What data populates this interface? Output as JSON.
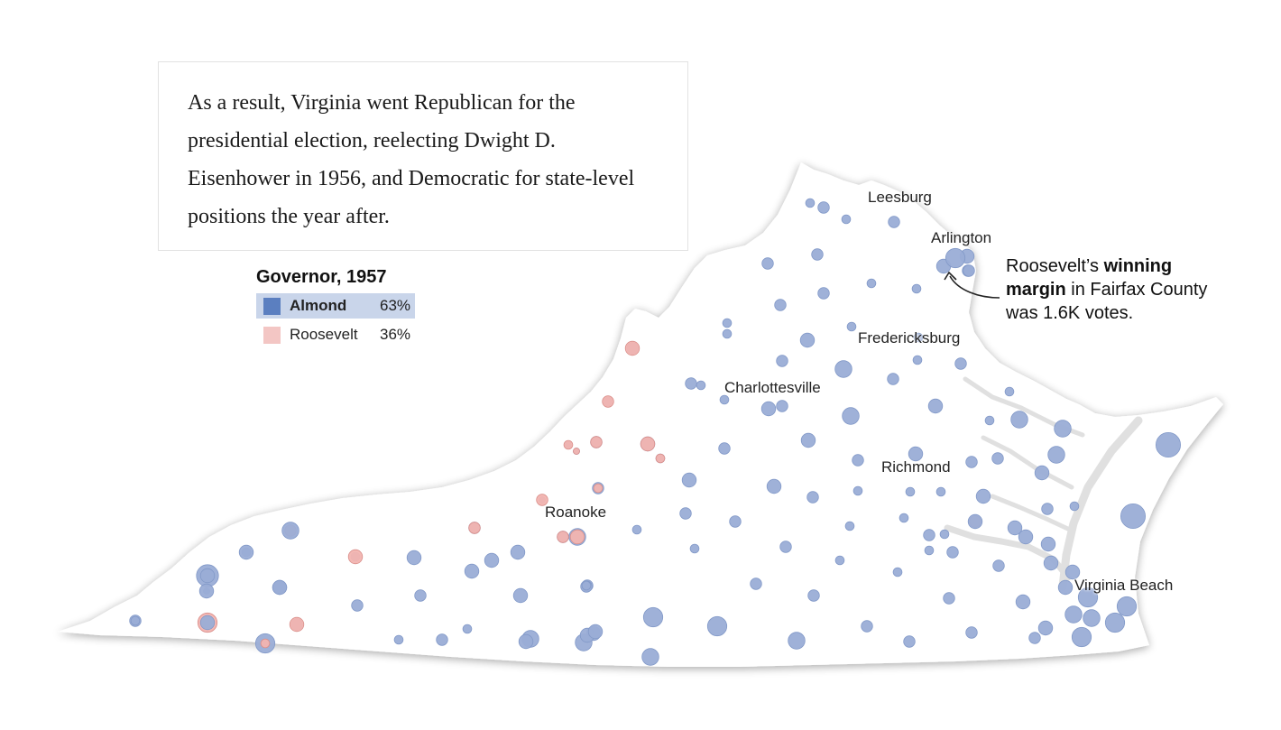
{
  "story": {
    "text": "As a result, Virginia went Republican for the presidential election, reelecting Dwight D. Eisenhower in 1956, and Democratic for state-level positions the year after."
  },
  "legend": {
    "title": "Governor, 1957",
    "candidates": [
      {
        "name": "Almond",
        "pct": "63%",
        "color": "#5b7fc0",
        "winner": true
      },
      {
        "name": "Roosevelt",
        "pct": "36%",
        "color": "#f3c6c4",
        "winner": false
      }
    ]
  },
  "cities": [
    "Leesburg",
    "Arlington",
    "Fredericksburg",
    "Charlottesville",
    "Richmond",
    "Roanoke",
    "Virginia Beach"
  ],
  "annotation": {
    "prefix": "Roosevelt’s ",
    "bold": "winning margin",
    "suffix": " in Fairfax County was 1.6K votes."
  },
  "colors": {
    "almond_bubble": "#9aadd6",
    "almond_stroke": "#8299c8",
    "roosevelt_bubble": "#f2b4b0",
    "roosevelt_stroke": "#d98e8a",
    "state_fill": "#ffffff",
    "water": "#e0e0e0"
  },
  "counties": [
    {
      "winner": "R",
      "size": 3
    },
    {
      "winner": "R",
      "size": 6
    },
    {
      "winner": "R",
      "size": 3
    },
    {
      "winner": "A",
      "size": 7
    },
    {
      "winner": "A",
      "size": 1
    },
    {
      "winner": "A",
      "size": 2
    },
    {
      "winner": "A",
      "size": 3
    },
    {
      "winner": "A",
      "size": 4
    },
    {
      "winner": "A",
      "size": 6
    },
    {
      "winner": "A",
      "size": 3
    },
    {
      "winner": "A",
      "size": 2
    },
    {
      "winner": "A",
      "size": 3
    },
    {
      "winner": "A",
      "size": 1
    },
    {
      "winner": "A",
      "size": 3
    },
    {
      "winner": "A",
      "size": 1
    },
    {
      "winner": "A",
      "size": 1
    },
    {
      "winner": "A",
      "size": 3
    },
    {
      "winner": "A",
      "size": 3
    },
    {
      "winner": "A",
      "size": 5
    },
    {
      "winner": "A",
      "size": 2
    },
    {
      "winner": "A",
      "size": 3
    },
    {
      "winner": "A",
      "size": 4
    },
    {
      "winner": "A",
      "size": 2
    },
    {
      "winner": "A",
      "size": 3
    },
    {
      "winner": "A",
      "size": 4
    },
    {
      "winner": "A",
      "size": 3
    },
    {
      "winner": "A",
      "size": 3
    },
    {
      "winner": "A",
      "size": 2
    },
    {
      "winner": "A",
      "size": 2
    },
    {
      "winner": "A",
      "size": 2
    },
    {
      "winner": "A",
      "size": 2
    },
    {
      "winner": "A",
      "size": 3
    },
    {
      "winner": "A",
      "size": 3
    },
    {
      "winner": "A",
      "size": 4
    },
    {
      "winner": "A",
      "size": 3
    },
    {
      "winner": "A",
      "size": 4
    },
    {
      "winner": "A",
      "size": 4
    },
    {
      "winner": "A",
      "size": 3
    },
    {
      "winner": "A",
      "size": 3
    },
    {
      "winner": "A",
      "size": 3
    },
    {
      "winner": "A",
      "size": 2
    },
    {
      "winner": "A",
      "size": 3
    },
    {
      "winner": "A",
      "size": 2
    },
    {
      "winner": "A",
      "size": 3
    },
    {
      "winner": "A",
      "size": 2
    },
    {
      "winner": "A",
      "size": 2
    },
    {
      "winner": "A",
      "size": 2
    },
    {
      "winner": "A",
      "size": 2
    },
    {
      "winner": "A",
      "size": 2
    },
    {
      "winner": "A",
      "size": 3
    },
    {
      "winner": "A",
      "size": 3
    },
    {
      "winner": "A",
      "size": 3
    },
    {
      "winner": "A",
      "size": 5
    },
    {
      "winner": "A",
      "size": 5
    },
    {
      "winner": "A",
      "size": 4
    },
    {
      "winner": "A",
      "size": 4
    },
    {
      "winner": "A",
      "size": 3
    },
    {
      "winner": "A",
      "size": 4
    },
    {
      "winner": "A",
      "size": 3
    },
    {
      "winner": "A",
      "size": 2
    },
    {
      "winner": "A",
      "size": 2
    },
    {
      "winner": "A",
      "size": 2
    },
    {
      "winner": "A",
      "size": 2
    },
    {
      "winner": "A",
      "size": 2
    },
    {
      "winner": "A",
      "size": 3
    },
    {
      "winner": "A",
      "size": 2
    },
    {
      "winner": "A",
      "size": 2
    },
    {
      "winner": "A",
      "size": 3
    },
    {
      "winner": "A",
      "size": 4
    },
    {
      "winner": "A",
      "size": 3
    },
    {
      "winner": "A",
      "size": 3
    },
    {
      "winner": "A",
      "size": 2
    },
    {
      "winner": "A",
      "size": 2
    },
    {
      "winner": "A",
      "size": 5
    },
    {
      "winner": "A",
      "size": 5
    },
    {
      "winner": "A",
      "size": 5
    },
    {
      "winner": "A",
      "size": 4
    },
    {
      "winner": "A",
      "size": 2
    },
    {
      "winner": "A",
      "size": 3
    },
    {
      "winner": "A",
      "size": 4
    },
    {
      "winner": "A",
      "size": 4
    },
    {
      "winner": "A",
      "size": 4
    },
    {
      "winner": "A",
      "size": 4
    },
    {
      "winner": "A",
      "size": 4
    },
    {
      "winner": "A",
      "size": 4
    },
    {
      "winner": "A",
      "size": 6
    },
    {
      "winner": "A",
      "size": 5
    },
    {
      "winner": "A",
      "size": 5
    },
    {
      "winner": "A",
      "size": 6
    },
    {
      "winner": "A",
      "size": 6
    },
    {
      "winner": "A",
      "size": 8
    },
    {
      "winner": "A",
      "size": 8
    },
    {
      "winner": "A",
      "size": 6
    },
    {
      "winner": "A",
      "size": 4
    },
    {
      "winner": "A",
      "size": 4
    },
    {
      "winner": "A",
      "size": 3
    },
    {
      "winner": "A",
      "size": 3
    },
    {
      "winner": "A",
      "size": 3
    },
    {
      "winner": "A",
      "size": 3
    },
    {
      "winner": "A",
      "size": 3
    },
    {
      "winner": "A",
      "size": 3
    },
    {
      "winner": "A",
      "size": 2
    },
    {
      "winner": "A",
      "size": 2
    },
    {
      "winner": "A",
      "size": 3
    },
    {
      "winner": "A",
      "size": 3
    },
    {
      "winner": "A",
      "size": 3
    },
    {
      "winner": "A",
      "size": 3
    },
    {
      "winner": "A",
      "size": 2
    },
    {
      "winner": "A",
      "size": 2
    },
    {
      "winner": "A",
      "size": 3
    },
    {
      "winner": "A",
      "size": 3
    },
    {
      "winner": "A",
      "size": 4
    },
    {
      "winner": "A",
      "size": 5
    },
    {
      "winner": "A",
      "size": 5
    },
    {
      "winner": "A",
      "size": 6
    },
    {
      "winner": "A",
      "size": 6
    },
    {
      "winner": "A",
      "size": 5
    },
    {
      "winner": "A",
      "size": 5
    },
    {
      "winner": "A",
      "size": 4
    },
    {
      "winner": "A",
      "size": 4
    },
    {
      "winner": "A",
      "size": 4
    },
    {
      "winner": "A",
      "size": 6
    },
    {
      "winner": "A",
      "size": 3
    },
    {
      "winner": "A",
      "size": 4
    },
    {
      "winner": "A",
      "size": 4
    },
    {
      "winner": "A",
      "size": 4
    },
    {
      "winner": "A",
      "size": 3
    },
    {
      "winner": "A",
      "size": 4
    },
    {
      "winner": "A",
      "size": 3
    },
    {
      "winner": "A",
      "size": 2
    },
    {
      "winner": "A",
      "size": 3
    },
    {
      "winner": "A",
      "size": 2
    },
    {
      "winner": "A",
      "size": 2
    },
    {
      "winner": "A",
      "size": 4
    },
    {
      "winner": "A",
      "size": 4
    },
    {
      "winner": "A",
      "size": 4
    },
    {
      "winner": "A",
      "size": 5
    },
    {
      "winner": "A",
      "size": 4
    },
    {
      "winner": "A",
      "size": 4
    },
    {
      "winner": "A",
      "size": 4
    },
    {
      "winner": "A",
      "size": 4
    },
    {
      "winner": "A",
      "size": 4
    },
    {
      "winner": "A",
      "size": 2
    },
    {
      "winner": "A",
      "size": 4
    },
    {
      "winner": "R",
      "size": 2
    },
    {
      "winner": "R",
      "size": 4
    },
    {
      "winner": "R",
      "size": 4
    },
    {
      "winner": "R",
      "size": 3
    },
    {
      "winner": "R",
      "size": 3
    },
    {
      "winner": "R",
      "size": 3
    },
    {
      "winner": "R",
      "size": 2
    },
    {
      "winner": "R",
      "size": 1
    },
    {
      "winner": "R",
      "size": 3
    },
    {
      "winner": "R",
      "size": 2
    },
    {
      "winner": "R",
      "size": 4
    },
    {
      "winner": "R",
      "size": 3
    },
    {
      "winner": "R",
      "size": 4
    },
    {
      "winner": "R",
      "size": 4
    },
    {
      "winner": "R",
      "size": 2
    }
  ]
}
